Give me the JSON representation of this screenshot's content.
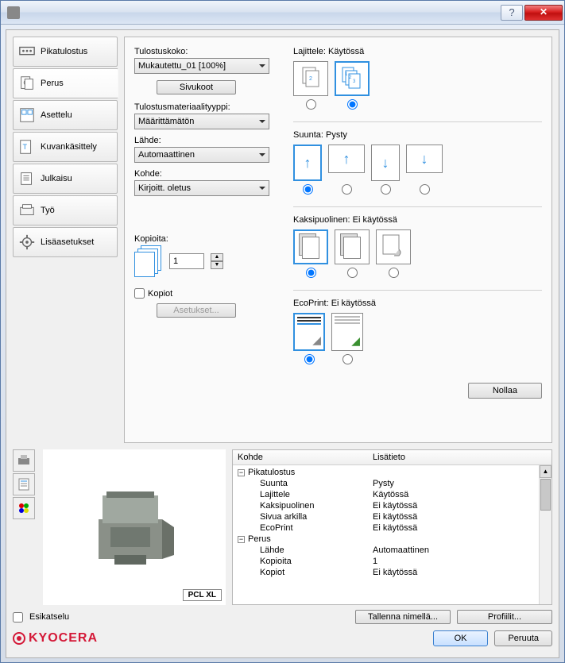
{
  "titlebar": {
    "help": "?",
    "close": "✕"
  },
  "tabs": {
    "quick": "Pikatulostus",
    "basic": "Perus",
    "layout": "Asettelu",
    "image": "Kuvankäsittely",
    "publish": "Julkaisu",
    "job": "Työ",
    "advanced": "Lisäasetukset"
  },
  "printsize": {
    "label": "Tulostuskoko:",
    "value": "Mukautettu_01 [100%]",
    "pagesizes_btn": "Sivukoot"
  },
  "mediatype": {
    "label": "Tulostusmateriaalityyppi:",
    "value": "Määrittämätön"
  },
  "source": {
    "label": "Lähde:",
    "value": "Automaattinen"
  },
  "dest": {
    "label": "Kohde:",
    "value": "Kirjoitt. oletus"
  },
  "copies": {
    "label": "Kopioita:",
    "value": "1"
  },
  "collate_chk": {
    "label": "Kopiot",
    "settings_btn": "Asetukset..."
  },
  "collate": {
    "label": "Lajittele:",
    "status": "Käytössä"
  },
  "orientation": {
    "label": "Suunta:",
    "status": "Pysty"
  },
  "duplex": {
    "label": "Kaksipuolinen:",
    "status": "Ei käytössä"
  },
  "ecoprint": {
    "label": "EcoPrint:",
    "status": "Ei käytössä"
  },
  "reset_btn": "Nollaa",
  "info": {
    "col1": "Kohde",
    "col2": "Lisätieto",
    "rows": [
      {
        "k": "Pikatulostus",
        "v": "",
        "group": true
      },
      {
        "k": "Suunta",
        "v": "Pysty"
      },
      {
        "k": "Lajittele",
        "v": "Käytössä"
      },
      {
        "k": "Kaksipuolinen",
        "v": "Ei käytössä"
      },
      {
        "k": "Sivua arkilla",
        "v": "Ei käytössä"
      },
      {
        "k": "EcoPrint",
        "v": "Ei käytössä"
      },
      {
        "k": "Perus",
        "v": "",
        "group": true
      },
      {
        "k": "Lähde",
        "v": "Automaattinen"
      },
      {
        "k": "Kopioita",
        "v": "1"
      },
      {
        "k": "Kopiot",
        "v": "Ei käytössä"
      }
    ]
  },
  "pcl_badge": "PCL XL",
  "preview_chk": "Esikatselu",
  "saveas_btn": "Tallenna nimellä...",
  "profiles_btn": "Profiilit...",
  "logo": "KYOCERA",
  "ok_btn": "OK",
  "cancel_btn": "Peruuta"
}
